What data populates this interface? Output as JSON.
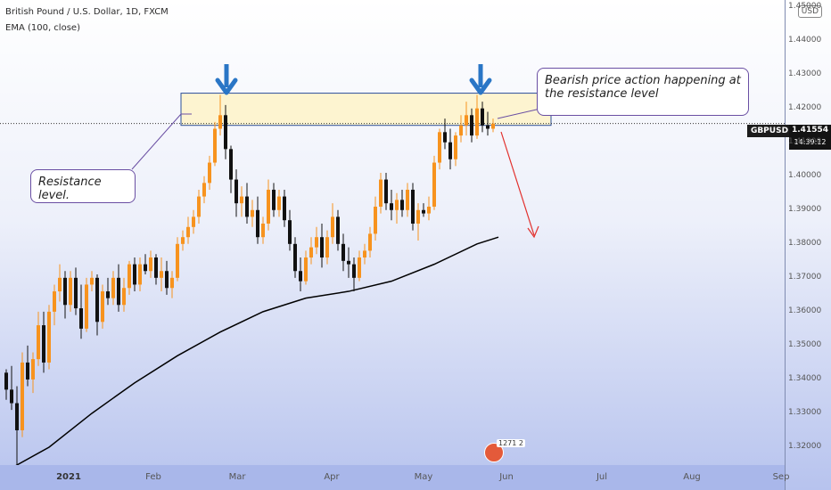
{
  "header": {
    "title": "British Pound / U.S. Dollar, 1D, FXCM",
    "indicator": "EMA (100, close)"
  },
  "currency_badge": "USD",
  "symbol": "GBPUSD",
  "last_price": "1.41554",
  "countdown": "14:39:12",
  "callouts": {
    "left": "Resistance level.",
    "right": "Bearish price action happening at the resistance level"
  },
  "watermark": {
    "count": "1271",
    "count2": "2"
  },
  "colors": {
    "up": "#f7931e",
    "down": "#111111",
    "zone": "#fdf4d0",
    "zone_border": "#2c4f9a",
    "arrow": "#2a76c6",
    "projection": "#e2302c",
    "ema": "#000000"
  },
  "chart_data": {
    "type": "candlestick",
    "series_name": "GBPUSD",
    "ylim": [
      1.315,
      1.452
    ],
    "y_ticks": [
      "1.32000",
      "1.33000",
      "1.34000",
      "1.35000",
      "1.36000",
      "1.37000",
      "1.38000",
      "1.39000",
      "1.40000",
      "1.41000",
      "1.42000",
      "1.43000",
      "1.44000",
      "1.45000"
    ],
    "x_ticks": [
      "2021",
      "Feb",
      "Mar",
      "Apr",
      "May",
      "Jun",
      "Jul",
      "Aug",
      "Sep"
    ],
    "resistance_zone": [
      1.415,
      1.4245
    ],
    "ohlc": [
      [
        1.342,
        1.343,
        1.334,
        1.337
      ],
      [
        1.337,
        1.344,
        1.331,
        1.333
      ],
      [
        1.333,
        1.338,
        1.314,
        1.325
      ],
      [
        1.325,
        1.348,
        1.323,
        1.345
      ],
      [
        1.345,
        1.35,
        1.338,
        1.34
      ],
      [
        1.34,
        1.348,
        1.336,
        1.346
      ],
      [
        1.346,
        1.36,
        1.344,
        1.356
      ],
      [
        1.356,
        1.36,
        1.342,
        1.345
      ],
      [
        1.345,
        1.362,
        1.343,
        1.36
      ],
      [
        1.36,
        1.368,
        1.356,
        1.366
      ],
      [
        1.366,
        1.374,
        1.363,
        1.37
      ],
      [
        1.37,
        1.372,
        1.358,
        1.362
      ],
      [
        1.362,
        1.372,
        1.36,
        1.37
      ],
      [
        1.37,
        1.373,
        1.359,
        1.361
      ],
      [
        1.361,
        1.368,
        1.352,
        1.355
      ],
      [
        1.355,
        1.37,
        1.354,
        1.368
      ],
      [
        1.368,
        1.372,
        1.366,
        1.37
      ],
      [
        1.37,
        1.371,
        1.353,
        1.357
      ],
      [
        1.357,
        1.368,
        1.355,
        1.366
      ],
      [
        1.366,
        1.37,
        1.362,
        1.364
      ],
      [
        1.364,
        1.372,
        1.362,
        1.37
      ],
      [
        1.37,
        1.374,
        1.36,
        1.362
      ],
      [
        1.362,
        1.37,
        1.36,
        1.367
      ],
      [
        1.367,
        1.375,
        1.365,
        1.374
      ],
      [
        1.374,
        1.376,
        1.366,
        1.368
      ],
      [
        1.368,
        1.376,
        1.366,
        1.374
      ],
      [
        1.374,
        1.377,
        1.371,
        1.372
      ],
      [
        1.372,
        1.378,
        1.37,
        1.376
      ],
      [
        1.376,
        1.377,
        1.368,
        1.37
      ],
      [
        1.37,
        1.376,
        1.366,
        1.372
      ],
      [
        1.372,
        1.375,
        1.365,
        1.367
      ],
      [
        1.367,
        1.372,
        1.364,
        1.37
      ],
      [
        1.37,
        1.382,
        1.369,
        1.38
      ],
      [
        1.38,
        1.384,
        1.378,
        1.382
      ],
      [
        1.382,
        1.388,
        1.38,
        1.385
      ],
      [
        1.385,
        1.39,
        1.383,
        1.388
      ],
      [
        1.388,
        1.396,
        1.386,
        1.394
      ],
      [
        1.394,
        1.4,
        1.392,
        1.398
      ],
      [
        1.398,
        1.406,
        1.396,
        1.404
      ],
      [
        1.404,
        1.416,
        1.403,
        1.414
      ],
      [
        1.414,
        1.424,
        1.412,
        1.418
      ],
      [
        1.418,
        1.421,
        1.405,
        1.408
      ],
      [
        1.408,
        1.409,
        1.395,
        1.399
      ],
      [
        1.399,
        1.402,
        1.388,
        1.392
      ],
      [
        1.392,
        1.397,
        1.388,
        1.394
      ],
      [
        1.394,
        1.398,
        1.386,
        1.388
      ],
      [
        1.388,
        1.393,
        1.385,
        1.39
      ],
      [
        1.39,
        1.394,
        1.38,
        1.382
      ],
      [
        1.382,
        1.388,
        1.38,
        1.386
      ],
      [
        1.386,
        1.399,
        1.384,
        1.396
      ],
      [
        1.396,
        1.398,
        1.388,
        1.39
      ],
      [
        1.39,
        1.396,
        1.388,
        1.394
      ],
      [
        1.394,
        1.396,
        1.385,
        1.387
      ],
      [
        1.387,
        1.39,
        1.378,
        1.38
      ],
      [
        1.38,
        1.382,
        1.37,
        1.372
      ],
      [
        1.372,
        1.376,
        1.366,
        1.369
      ],
      [
        1.369,
        1.378,
        1.368,
        1.376
      ],
      [
        1.376,
        1.382,
        1.374,
        1.379
      ],
      [
        1.379,
        1.385,
        1.377,
        1.382
      ],
      [
        1.382,
        1.386,
        1.373,
        1.376
      ],
      [
        1.376,
        1.384,
        1.374,
        1.382
      ],
      [
        1.382,
        1.392,
        1.38,
        1.388
      ],
      [
        1.388,
        1.39,
        1.378,
        1.38
      ],
      [
        1.38,
        1.383,
        1.372,
        1.375
      ],
      [
        1.375,
        1.379,
        1.37,
        1.374
      ],
      [
        1.374,
        1.376,
        1.366,
        1.37
      ],
      [
        1.37,
        1.378,
        1.369,
        1.376
      ],
      [
        1.376,
        1.38,
        1.374,
        1.378
      ],
      [
        1.378,
        1.385,
        1.376,
        1.383
      ],
      [
        1.383,
        1.394,
        1.381,
        1.391
      ],
      [
        1.391,
        1.401,
        1.389,
        1.399
      ],
      [
        1.399,
        1.401,
        1.39,
        1.392
      ],
      [
        1.392,
        1.396,
        1.387,
        1.39
      ],
      [
        1.39,
        1.395,
        1.386,
        1.393
      ],
      [
        1.393,
        1.396,
        1.388,
        1.39
      ],
      [
        1.39,
        1.398,
        1.388,
        1.396
      ],
      [
        1.396,
        1.398,
        1.384,
        1.386
      ],
      [
        1.386,
        1.392,
        1.381,
        1.39
      ],
      [
        1.39,
        1.392,
        1.388,
        1.389
      ],
      [
        1.389,
        1.394,
        1.387,
        1.391
      ],
      [
        1.391,
        1.406,
        1.39,
        1.404
      ],
      [
        1.404,
        1.414,
        1.402,
        1.413
      ],
      [
        1.413,
        1.417,
        1.408,
        1.41
      ],
      [
        1.41,
        1.414,
        1.402,
        1.405
      ],
      [
        1.405,
        1.413,
        1.403,
        1.412
      ],
      [
        1.412,
        1.418,
        1.41,
        1.415
      ],
      [
        1.415,
        1.422,
        1.412,
        1.418
      ],
      [
        1.418,
        1.42,
        1.41,
        1.412
      ],
      [
        1.412,
        1.424,
        1.411,
        1.42
      ],
      [
        1.42,
        1.422,
        1.413,
        1.415
      ],
      [
        1.415,
        1.419,
        1.412,
        1.414
      ],
      [
        1.414,
        1.417,
        1.413,
        1.4155
      ]
    ],
    "ema": [
      [
        0,
        1.313
      ],
      [
        8,
        1.32
      ],
      [
        16,
        1.33
      ],
      [
        24,
        1.339
      ],
      [
        32,
        1.347
      ],
      [
        40,
        1.354
      ],
      [
        48,
        1.36
      ],
      [
        56,
        1.364
      ],
      [
        64,
        1.366
      ],
      [
        72,
        1.369
      ],
      [
        80,
        1.374
      ],
      [
        88,
        1.38
      ],
      [
        92,
        1.382
      ]
    ]
  }
}
